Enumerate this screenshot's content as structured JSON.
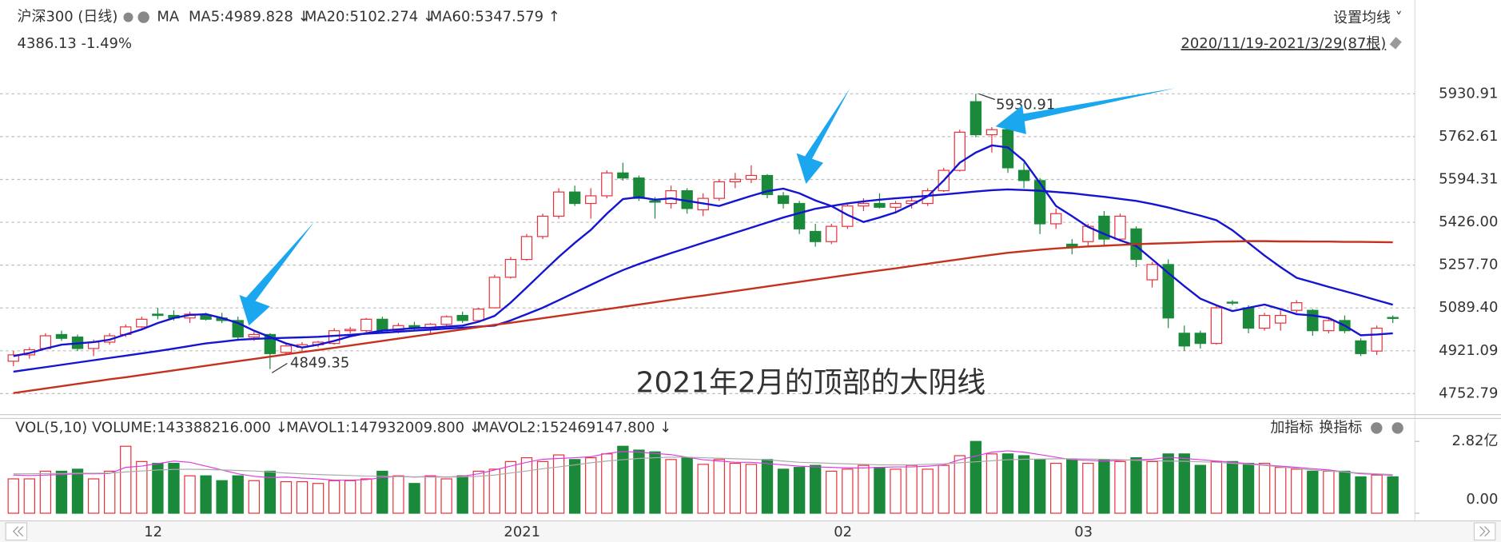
{
  "toolbar": {
    "settings": "设置均线 ˅",
    "quote": "4386.13 -1.49%",
    "range": "2020/11/19-2021/3/29(87根)",
    "ma_label": "MA",
    "add_indicator": "加指标",
    "switch_indicator": "换指标"
  },
  "chart_data": [
    {
      "type": "candlestick",
      "title": "沪深300 (日线)",
      "annotation": "2021年2月的顶部的大阴线",
      "up_color": "#e8303a",
      "down_color": "#1a8a3a",
      "categories": [
        null,
        null,
        null,
        null,
        null,
        null,
        null,
        null,
        "12",
        null,
        null,
        null,
        null,
        null,
        null,
        null,
        null,
        null,
        null,
        null,
        null,
        null,
        null,
        null,
        null,
        null,
        null,
        null,
        null,
        null,
        null,
        "2021",
        null,
        null,
        null,
        null,
        null,
        null,
        null,
        null,
        null,
        null,
        null,
        null,
        null,
        null,
        null,
        null,
        null,
        null,
        null,
        "02",
        null,
        null,
        null,
        null,
        null,
        null,
        null,
        null,
        null,
        null,
        null,
        null,
        null,
        null,
        "03",
        null,
        null,
        null,
        null,
        null,
        null,
        null,
        null,
        null,
        null,
        null,
        null,
        null,
        null,
        null,
        null,
        null,
        null,
        null,
        null
      ],
      "ohlc": [
        [
          4880,
          4920,
          4860,
          4905
        ],
        [
          4905,
          4935,
          4890,
          4925
        ],
        [
          4930,
          4990,
          4925,
          4980
        ],
        [
          4985,
          5000,
          4960,
          4970
        ],
        [
          4975,
          4985,
          4920,
          4930
        ],
        [
          4930,
          4965,
          4900,
          4955
        ],
        [
          4955,
          4990,
          4945,
          4980
        ],
        [
          4985,
          5025,
          4975,
          5015
        ],
        [
          5015,
          5055,
          5010,
          5045
        ],
        [
          5065,
          5090,
          5045,
          5060
        ],
        [
          5060,
          5080,
          5040,
          5050
        ],
        [
          5050,
          5075,
          5030,
          5065
        ],
        [
          5060,
          5070,
          5040,
          5045
        ],
        [
          5050,
          5070,
          5030,
          5040
        ],
        [
          5040,
          5055,
          4960,
          4975
        ],
        [
          4975,
          4995,
          4960,
          4985
        ],
        [
          4985,
          4990,
          4849.35,
          4910
        ],
        [
          4915,
          4950,
          4905,
          4940
        ],
        [
          4935,
          4955,
          4920,
          4945
        ],
        [
          4945,
          4960,
          4935,
          4955
        ],
        [
          4950,
          5010,
          4945,
          5000
        ],
        [
          5000,
          5015,
          4990,
          5005
        ],
        [
          5000,
          5050,
          4995,
          5045
        ],
        [
          5045,
          5055,
          4990,
          5000
        ],
        [
          5000,
          5030,
          4990,
          5020
        ],
        [
          5020,
          5035,
          5000,
          5010
        ],
        [
          5010,
          5030,
          4990,
          5025
        ],
        [
          5025,
          5060,
          5020,
          5055
        ],
        [
          5060,
          5075,
          5030,
          5040
        ],
        [
          5040,
          5090,
          5035,
          5085
        ],
        [
          5090,
          5220,
          5090,
          5210
        ],
        [
          5210,
          5290,
          5205,
          5280
        ],
        [
          5280,
          5380,
          5275,
          5370
        ],
        [
          5370,
          5460,
          5360,
          5450
        ],
        [
          5450,
          5560,
          5440,
          5545
        ],
        [
          5545,
          5570,
          5490,
          5500
        ],
        [
          5500,
          5560,
          5440,
          5530
        ],
        [
          5530,
          5630,
          5520,
          5620
        ],
        [
          5620,
          5660,
          5590,
          5600
        ],
        [
          5600,
          5610,
          5510,
          5520
        ],
        [
          5510,
          5525,
          5440,
          5505
        ],
        [
          5500,
          5570,
          5480,
          5550
        ],
        [
          5550,
          5560,
          5460,
          5480
        ],
        [
          5475,
          5540,
          5450,
          5520
        ],
        [
          5520,
          5595,
          5510,
          5585
        ],
        [
          5585,
          5620,
          5560,
          5595
        ],
        [
          5595,
          5650,
          5580,
          5610
        ],
        [
          5610,
          5615,
          5520,
          5535
        ],
        [
          5530,
          5545,
          5480,
          5500
        ],
        [
          5500,
          5510,
          5380,
          5400
        ],
        [
          5390,
          5420,
          5330,
          5350
        ],
        [
          5350,
          5420,
          5340,
          5410
        ],
        [
          5410,
          5500,
          5400,
          5490
        ],
        [
          5490,
          5520,
          5470,
          5500
        ],
        [
          5500,
          5540,
          5480,
          5485
        ],
        [
          5485,
          5510,
          5460,
          5500
        ],
        [
          5500,
          5530,
          5480,
          5510
        ],
        [
          5500,
          5560,
          5490,
          5550
        ],
        [
          5550,
          5640,
          5545,
          5630
        ],
        [
          5630,
          5790,
          5625,
          5780
        ],
        [
          5900,
          5930.91,
          5760,
          5770
        ],
        [
          5770,
          5800,
          5700,
          5790
        ],
        [
          5790,
          5800,
          5620,
          5640
        ],
        [
          5630,
          5660,
          5560,
          5590
        ],
        [
          5590,
          5600,
          5380,
          5420
        ],
        [
          5420,
          5480,
          5400,
          5460
        ],
        [
          5340,
          5360,
          5300,
          5330
        ],
        [
          5350,
          5420,
          5330,
          5410
        ],
        [
          5450,
          5470,
          5330,
          5360
        ],
        [
          5360,
          5460,
          5350,
          5450
        ],
        [
          5400,
          5410,
          5250,
          5280
        ],
        [
          5200,
          5270,
          5170,
          5260
        ],
        [
          5260,
          5280,
          5010,
          5050
        ],
        [
          4990,
          5020,
          4920,
          4940
        ],
        [
          4990,
          5000,
          4930,
          4950
        ],
        [
          4950,
          5100,
          4945,
          5090
        ],
        [
          5112,
          5120,
          5100,
          5110
        ],
        [
          5090,
          5100,
          4990,
          5010
        ],
        [
          5010,
          5070,
          5000,
          5060
        ],
        [
          5030,
          5080,
          5000,
          5060
        ],
        [
          5080,
          5120,
          5070,
          5110
        ],
        [
          5080,
          5085,
          4980,
          5000
        ],
        [
          5000,
          5050,
          4990,
          5040
        ],
        [
          5040,
          5060,
          4990,
          5000
        ],
        [
          4960,
          4970,
          4900,
          4910
        ],
        [
          4920,
          5020,
          4905,
          5010
        ],
        [
          5052,
          5060,
          5030,
          5050
        ]
      ],
      "series": [
        {
          "name": "MA5:4989.828 ↓",
          "color": "#1414d2",
          "values": [
            4900,
            4912,
            4930,
            4945,
            4950,
            4955,
            4965,
            4985,
            5005,
            5030,
            5050,
            5062,
            5065,
            5050,
            5030,
            5000,
            4975,
            4950,
            4934,
            4945,
            4960,
            4978,
            4990,
            5000,
            5005,
            5010,
            5012,
            5016,
            5020,
            5035,
            5058,
            5110,
            5170,
            5230,
            5290,
            5345,
            5396,
            5460,
            5517,
            5525,
            5515,
            5520,
            5510,
            5500,
            5490,
            5510,
            5530,
            5548,
            5558,
            5540,
            5512,
            5490,
            5455,
            5427,
            5445,
            5465,
            5495,
            5528,
            5590,
            5660,
            5700,
            5728,
            5720,
            5668,
            5580,
            5490,
            5450,
            5408,
            5380,
            5355,
            5333,
            5280,
            5227,
            5175,
            5126,
            5100,
            5077,
            5090,
            5103,
            5085,
            5065,
            5060,
            5050,
            5020,
            4982,
            4985,
            4989.828
          ]
        },
        {
          "name": "MA20:5102.274 ↓",
          "color": "#1414d2",
          "values": [
            4839,
            4848,
            4857,
            4866,
            4875,
            4884,
            4893,
            4902,
            4911,
            4920,
            4930,
            4940,
            4950,
            4957,
            4964,
            4968,
            4970,
            4972,
            4974,
            4976,
            4980,
            4984,
            4988,
            4992,
            4996,
            5000,
            5004,
            5008,
            5012,
            5016,
            5020,
            5040,
            5065,
            5090,
            5120,
            5150,
            5180,
            5210,
            5238,
            5262,
            5284,
            5305,
            5325,
            5345,
            5365,
            5385,
            5405,
            5425,
            5445,
            5462,
            5479,
            5490,
            5500,
            5508,
            5515,
            5520,
            5525,
            5530,
            5535,
            5541,
            5547,
            5552,
            5555,
            5553,
            5550,
            5545,
            5540,
            5533,
            5526,
            5518,
            5510,
            5498,
            5484,
            5468,
            5452,
            5434,
            5395,
            5345,
            5295,
            5250,
            5208,
            5190,
            5172,
            5155,
            5138,
            5120,
            5102.274
          ]
        },
        {
          "name": "MA60:5347.579 ↑",
          "color": "#c4321e",
          "values": [
            4755,
            4764,
            4773,
            4782,
            4791,
            4800,
            4809,
            4817,
            4826,
            4835,
            4844,
            4853,
            4862,
            4871,
            4880,
            4889,
            4898,
            4907,
            4916,
            4924,
            4933,
            4942,
            4951,
            4960,
            4969,
            4978,
            4987,
            4996,
            5005,
            5014,
            5023,
            5031,
            5040,
            5049,
            5058,
            5067,
            5076,
            5085,
            5094,
            5103,
            5112,
            5121,
            5130,
            5138,
            5147,
            5156,
            5165,
            5174,
            5183,
            5192,
            5201,
            5210,
            5219,
            5228,
            5237,
            5245,
            5254,
            5263,
            5272,
            5281,
            5290,
            5298,
            5306,
            5312,
            5318,
            5323,
            5327,
            5331,
            5334,
            5337,
            5340,
            5342,
            5344,
            5346,
            5348,
            5350,
            5351,
            5352,
            5352,
            5351,
            5351,
            5350,
            5350,
            5349,
            5349,
            5348,
            5347.579
          ]
        }
      ],
      "ylim": [
        4674,
        6066
      ],
      "yticks": [
        5930.91,
        5762.61,
        5594.31,
        {
          "value": 5426,
          "label": "5426.00"
        },
        {
          "value": 5257.7,
          "label": "5257.70"
        },
        {
          "value": 5089.4,
          "label": "5089.40"
        },
        4921.09,
        4752.79
      ],
      "grid": true
    },
    {
      "type": "bar",
      "title": "VOL(5,10)",
      "series": [
        {
          "name": "VOLUME:143388216.000 ↓",
          "color": "#333333",
          "values": [
            1.35,
            1.35,
            1.65,
            1.65,
            1.73,
            1.35,
            1.65,
            2.63,
            2.03,
            1.96,
            1.96,
            1.47,
            1.47,
            1.28,
            1.47,
            1.28,
            1.65,
            1.24,
            1.24,
            1.17,
            1.28,
            1.28,
            1.35,
            1.65,
            1.47,
            1.17,
            1.47,
            1.35,
            1.47,
            1.65,
            1.73,
            2.03,
            2.18,
            2.03,
            2.29,
            2.11,
            2.18,
            2.33,
            2.63,
            2.48,
            2.41,
            2.11,
            2.18,
            1.92,
            2.11,
            1.96,
            1.92,
            2.11,
            1.73,
            1.8,
            1.88,
            1.65,
            1.73,
            1.88,
            1.8,
            1.73,
            1.88,
            1.73,
            1.88,
            2.26,
            2.82,
            2.33,
            2.33,
            2.26,
            2.11,
            1.96,
            2.11,
            1.96,
            2.11,
            2.03,
            2.18,
            2.03,
            2.33,
            2.33,
            1.88,
            2.03,
            2.03,
            1.96,
            1.96,
            1.8,
            1.73,
            1.65,
            1.65,
            1.65,
            1.43,
            1.5,
            1.43
          ]
        },
        {
          "name": "MAVOL1:147932009.800 ↓",
          "color": "#e03ce0",
          "values": [
            1.5,
            1.48,
            1.5,
            1.52,
            1.55,
            1.55,
            1.56,
            1.8,
            1.85,
            1.95,
            2.05,
            2.0,
            1.85,
            1.7,
            1.55,
            1.45,
            1.4,
            1.42,
            1.38,
            1.35,
            1.3,
            1.3,
            1.32,
            1.4,
            1.45,
            1.42,
            1.45,
            1.42,
            1.45,
            1.55,
            1.7,
            1.85,
            2.0,
            2.12,
            2.15,
            2.18,
            2.22,
            2.35,
            2.42,
            2.4,
            2.35,
            2.3,
            2.2,
            2.1,
            2.05,
            2.0,
            2.0,
            1.95,
            1.9,
            1.85,
            1.82,
            1.8,
            1.78,
            1.78,
            1.8,
            1.82,
            1.82,
            1.85,
            1.9,
            2.1,
            2.25,
            2.4,
            2.45,
            2.4,
            2.3,
            2.2,
            2.1,
            2.08,
            2.05,
            2.08,
            2.1,
            2.12,
            2.2,
            2.15,
            2.1,
            2.05,
            2.0,
            1.95,
            1.9,
            1.85,
            1.8,
            1.75,
            1.7,
            1.62,
            1.55,
            1.53,
            1.48
          ]
        },
        {
          "name": "MAVOL2:152469147.800 ↓",
          "color": "#aaaaaa",
          "values": [
            1.55,
            1.55,
            1.56,
            1.56,
            1.57,
            1.57,
            1.58,
            1.62,
            1.66,
            1.7,
            1.72,
            1.73,
            1.72,
            1.7,
            1.68,
            1.66,
            1.62,
            1.58,
            1.55,
            1.52,
            1.5,
            1.48,
            1.46,
            1.45,
            1.44,
            1.43,
            1.42,
            1.42,
            1.43,
            1.45,
            1.5,
            1.58,
            1.66,
            1.75,
            1.82,
            1.9,
            1.98,
            2.05,
            2.1,
            2.15,
            2.18,
            2.2,
            2.2,
            2.18,
            2.16,
            2.14,
            2.12,
            2.1,
            2.05,
            2.0,
            1.98,
            1.96,
            1.94,
            1.92,
            1.9,
            1.9,
            1.9,
            1.92,
            1.94,
            1.98,
            2.02,
            2.06,
            2.1,
            2.12,
            2.13,
            2.14,
            2.14,
            2.13,
            2.12,
            2.1,
            2.08,
            2.06,
            2.05,
            2.04,
            2.02,
            2.0,
            1.96,
            1.92,
            1.88,
            1.82,
            1.76,
            1.7,
            1.66,
            1.62,
            1.58,
            1.55,
            1.52
          ]
        }
      ],
      "ylim": [
        0,
        2.82
      ],
      "yticks": [
        {
          "value": 2.82,
          "label": "2.82亿"
        },
        {
          "value": 0,
          "label": "0.00"
        }
      ]
    }
  ]
}
